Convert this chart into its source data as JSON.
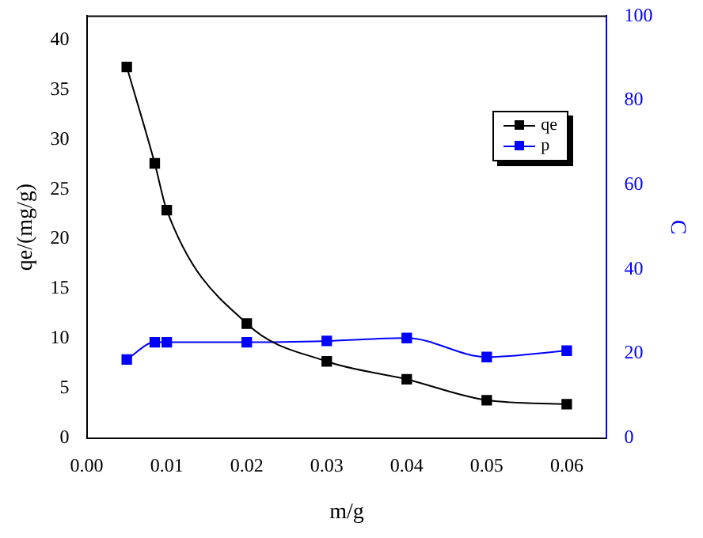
{
  "chart_data": {
    "type": "line",
    "xlabel": "m/g",
    "ylabel": "qe/(mg/g)",
    "y2label": "C",
    "x": [
      0.005,
      0.0085,
      0.01,
      0.02,
      0.03,
      0.04,
      0.05,
      0.06
    ],
    "series": [
      {
        "name": "qe",
        "color": "#000000",
        "values": [
          37.3,
          27.6,
          22.9,
          11.5,
          7.7,
          5.9,
          3.8,
          3.4
        ]
      },
      {
        "name": "p",
        "color": "#0000ff",
        "axis": "y2",
        "values": [
          18.6,
          22.7,
          22.7,
          22.7,
          23.0,
          23.7,
          19.2,
          20.7
        ]
      }
    ],
    "xlim": [
      0,
      0.065
    ],
    "xticks": [
      {
        "value": 0,
        "label": "0.00"
      },
      {
        "value": 0.01,
        "label": "0.01"
      },
      {
        "value": 0.02,
        "label": "0.02"
      },
      {
        "value": 0.03,
        "label": "0.03"
      },
      {
        "value": 0.04,
        "label": "0.04"
      },
      {
        "value": 0.05,
        "label": "0.05"
      },
      {
        "value": 0.06,
        "label": "0.06"
      }
    ],
    "ylim": [
      0,
      42.4
    ],
    "yticks": [
      0,
      5,
      10,
      15,
      20,
      25,
      30,
      35,
      40
    ],
    "y2lim": [
      0,
      100
    ],
    "y2ticks": [
      0,
      20,
      40,
      60,
      80,
      100
    ],
    "grid": false,
    "legend": "top right",
    "marker": "square",
    "line_style": "solid"
  }
}
